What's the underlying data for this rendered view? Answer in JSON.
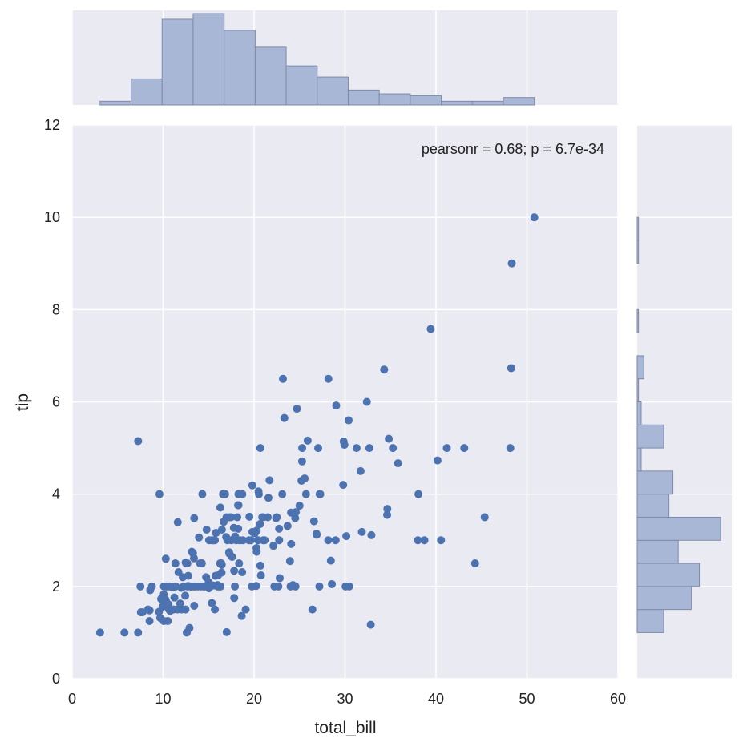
{
  "chart_data": {
    "type": "scatter",
    "variant": "jointplot",
    "xlabel": "total_bill",
    "ylabel": "tip",
    "xlim": [
      0,
      60
    ],
    "ylim": [
      0,
      12
    ],
    "x_ticks": [
      0,
      10,
      20,
      30,
      40,
      50,
      60
    ],
    "y_ticks": [
      0,
      2,
      4,
      6,
      8,
      10,
      12
    ],
    "grid": true,
    "annotation": "pearsonr = 0.68; p = 6.7e-34",
    "colors": {
      "background": "#EAEAF2",
      "grid": "#FFFFFF",
      "points": "#4C72B0",
      "hist_fill": "#A9B7D6",
      "hist_edge": "#7D8AA8"
    },
    "points": [
      [
        3.07,
        1.0
      ],
      [
        5.75,
        1.0
      ],
      [
        7.25,
        1.0
      ],
      [
        7.25,
        5.15
      ],
      [
        7.51,
        2.0
      ],
      [
        7.56,
        1.44
      ],
      [
        7.74,
        1.44
      ],
      [
        8.35,
        1.5
      ],
      [
        8.51,
        1.25
      ],
      [
        8.52,
        1.48
      ],
      [
        8.58,
        1.92
      ],
      [
        8.77,
        2.0
      ],
      [
        9.55,
        1.45
      ],
      [
        9.6,
        4.0
      ],
      [
        9.68,
        1.32
      ],
      [
        9.78,
        1.73
      ],
      [
        9.94,
        1.56
      ],
      [
        10.07,
        1.25
      ],
      [
        10.07,
        1.83
      ],
      [
        10.09,
        2.0
      ],
      [
        10.27,
        1.71
      ],
      [
        10.29,
        2.6
      ],
      [
        10.33,
        1.67
      ],
      [
        10.33,
        2.0
      ],
      [
        10.34,
        1.66
      ],
      [
        10.34,
        2.0
      ],
      [
        10.51,
        1.25
      ],
      [
        10.59,
        1.61
      ],
      [
        10.63,
        2.0
      ],
      [
        10.65,
        1.5
      ],
      [
        10.77,
        1.47
      ],
      [
        11.02,
        1.98
      ],
      [
        11.17,
        1.5
      ],
      [
        11.24,
        1.76
      ],
      [
        11.35,
        2.5
      ],
      [
        11.38,
        2.0
      ],
      [
        11.59,
        1.5
      ],
      [
        11.61,
        3.39
      ],
      [
        11.69,
        2.31
      ],
      [
        11.87,
        1.63
      ],
      [
        12.02,
        1.97
      ],
      [
        12.03,
        1.5
      ],
      [
        12.16,
        2.2
      ],
      [
        12.26,
        2.0
      ],
      [
        12.43,
        1.8
      ],
      [
        12.46,
        1.5
      ],
      [
        12.48,
        2.52
      ],
      [
        12.54,
        2.5
      ],
      [
        12.6,
        1.0
      ],
      [
        12.66,
        2.5
      ],
      [
        12.69,
        2.0
      ],
      [
        12.74,
        2.01
      ],
      [
        12.76,
        2.23
      ],
      [
        12.9,
        1.1
      ],
      [
        13.0,
        2.0
      ],
      [
        13.03,
        2.0
      ],
      [
        13.13,
        2.0
      ],
      [
        13.16,
        2.75
      ],
      [
        13.28,
        2.72
      ],
      [
        13.37,
        2.0
      ],
      [
        13.39,
        2.61
      ],
      [
        13.42,
        3.48
      ],
      [
        13.42,
        1.58
      ],
      [
        13.51,
        2.0
      ],
      [
        13.81,
        2.0
      ],
      [
        13.94,
        3.06
      ],
      [
        14.07,
        2.5
      ],
      [
        14.15,
        2.0
      ],
      [
        14.26,
        2.5
      ],
      [
        14.31,
        4.0
      ],
      [
        14.48,
        2.0
      ],
      [
        14.52,
        2.0
      ],
      [
        14.73,
        2.2
      ],
      [
        14.78,
        3.23
      ],
      [
        15.01,
        2.09
      ],
      [
        15.04,
        1.96
      ],
      [
        15.06,
        3.0
      ],
      [
        15.36,
        1.64
      ],
      [
        15.38,
        3.0
      ],
      [
        15.48,
        2.02
      ],
      [
        15.53,
        3.0
      ],
      [
        15.69,
        1.5
      ],
      [
        15.69,
        3.0
      ],
      [
        15.77,
        2.23
      ],
      [
        15.81,
        3.16
      ],
      [
        15.98,
        2.03
      ],
      [
        16.0,
        2.0
      ],
      [
        16.04,
        2.24
      ],
      [
        16.21,
        2.0
      ],
      [
        16.27,
        2.5
      ],
      [
        16.29,
        3.71
      ],
      [
        16.31,
        2.0
      ],
      [
        16.4,
        2.5
      ],
      [
        16.43,
        2.3
      ],
      [
        16.45,
        2.47
      ],
      [
        16.47,
        3.23
      ],
      [
        16.58,
        4.0
      ],
      [
        16.66,
        3.4
      ],
      [
        16.82,
        4.0
      ],
      [
        16.93,
        3.07
      ],
      [
        16.97,
        3.5
      ],
      [
        16.99,
        1.01
      ],
      [
        17.07,
        3.0
      ],
      [
        17.26,
        2.74
      ],
      [
        17.29,
        2.71
      ],
      [
        17.31,
        3.5
      ],
      [
        17.47,
        3.5
      ],
      [
        17.51,
        3.0
      ],
      [
        17.59,
        2.64
      ],
      [
        17.78,
        3.27
      ],
      [
        17.81,
        2.34
      ],
      [
        17.82,
        1.75
      ],
      [
        17.89,
        2.0
      ],
      [
        17.92,
        3.08
      ],
      [
        18.04,
        3.0
      ],
      [
        18.15,
        3.5
      ],
      [
        18.24,
        3.76
      ],
      [
        18.26,
        3.25
      ],
      [
        18.28,
        4.0
      ],
      [
        18.29,
        3.76
      ],
      [
        18.35,
        2.5
      ],
      [
        18.43,
        3.0
      ],
      [
        18.64,
        1.36
      ],
      [
        18.69,
        2.31
      ],
      [
        18.71,
        4.0
      ],
      [
        18.78,
        3.0
      ],
      [
        19.08,
        1.5
      ],
      [
        19.44,
        3.0
      ],
      [
        19.49,
        3.51
      ],
      [
        19.65,
        3.0
      ],
      [
        19.77,
        2.0
      ],
      [
        19.81,
        4.19
      ],
      [
        19.82,
        3.18
      ],
      [
        20.08,
        3.15
      ],
      [
        20.23,
        2.01
      ],
      [
        20.27,
        2.83
      ],
      [
        20.29,
        3.21
      ],
      [
        20.29,
        2.75
      ],
      [
        20.45,
        3.0
      ],
      [
        20.49,
        4.06
      ],
      [
        20.53,
        4.0
      ],
      [
        20.65,
        3.35
      ],
      [
        20.69,
        2.45
      ],
      [
        20.69,
        5.0
      ],
      [
        20.76,
        2.24
      ],
      [
        20.9,
        3.5
      ],
      [
        21.01,
        3.0
      ],
      [
        21.01,
        3.5
      ],
      [
        21.16,
        3.0
      ],
      [
        21.5,
        3.5
      ],
      [
        21.58,
        3.92
      ],
      [
        21.7,
        4.3
      ],
      [
        22.12,
        2.88
      ],
      [
        22.23,
        2.0
      ],
      [
        22.42,
        3.48
      ],
      [
        22.49,
        3.5
      ],
      [
        22.67,
        2.0
      ],
      [
        22.75,
        3.25
      ],
      [
        22.76,
        3.0
      ],
      [
        22.82,
        2.18
      ],
      [
        23.1,
        4.0
      ],
      [
        23.17,
        6.5
      ],
      [
        23.33,
        5.65
      ],
      [
        23.68,
        3.31
      ],
      [
        23.95,
        2.55
      ],
      [
        24.01,
        2.0
      ],
      [
        24.06,
        3.6
      ],
      [
        24.08,
        2.92
      ],
      [
        24.27,
        2.03
      ],
      [
        24.52,
        3.48
      ],
      [
        24.55,
        2.0
      ],
      [
        24.59,
        3.61
      ],
      [
        24.71,
        5.85
      ],
      [
        25.0,
        3.75
      ],
      [
        25.21,
        4.29
      ],
      [
        25.28,
        4.71
      ],
      [
        25.29,
        5.0
      ],
      [
        25.56,
        4.34
      ],
      [
        25.71,
        4.0
      ],
      [
        25.89,
        5.16
      ],
      [
        26.41,
        1.5
      ],
      [
        26.59,
        3.41
      ],
      [
        26.86,
        3.14
      ],
      [
        26.88,
        3.12
      ],
      [
        27.05,
        5.0
      ],
      [
        27.18,
        2.0
      ],
      [
        27.2,
        4.0
      ],
      [
        27.28,
        4.0
      ],
      [
        28.15,
        3.0
      ],
      [
        28.17,
        6.5
      ],
      [
        28.44,
        2.56
      ],
      [
        28.55,
        2.05
      ],
      [
        28.97,
        3.0
      ],
      [
        29.03,
        5.92
      ],
      [
        29.8,
        4.2
      ],
      [
        29.85,
        5.14
      ],
      [
        29.93,
        5.07
      ],
      [
        30.06,
        2.0
      ],
      [
        30.14,
        3.09
      ],
      [
        30.4,
        5.6
      ],
      [
        30.46,
        2.0
      ],
      [
        31.27,
        5.0
      ],
      [
        31.71,
        4.5
      ],
      [
        31.85,
        3.18
      ],
      [
        32.4,
        6.0
      ],
      [
        32.68,
        5.0
      ],
      [
        32.83,
        1.17
      ],
      [
        32.9,
        3.11
      ],
      [
        34.3,
        6.7
      ],
      [
        34.63,
        3.55
      ],
      [
        34.65,
        3.68
      ],
      [
        34.81,
        5.2
      ],
      [
        35.26,
        5.0
      ],
      [
        35.83,
        4.67
      ],
      [
        38.01,
        3.0
      ],
      [
        38.07,
        4.0
      ],
      [
        38.73,
        3.0
      ],
      [
        39.42,
        7.58
      ],
      [
        40.17,
        4.73
      ],
      [
        40.55,
        3.0
      ],
      [
        41.19,
        5.0
      ],
      [
        43.11,
        5.0
      ],
      [
        44.3,
        2.5
      ],
      [
        45.35,
        3.5
      ],
      [
        48.17,
        5.0
      ],
      [
        48.27,
        6.73
      ],
      [
        48.33,
        9.0
      ],
      [
        50.81,
        10.0
      ]
    ],
    "x_histogram": {
      "bin_edges": [
        3.07,
        6.48,
        9.89,
        13.3,
        16.71,
        20.12,
        23.53,
        26.94,
        30.35,
        33.76,
        37.17,
        40.58,
        43.99,
        47.4,
        50.81
      ],
      "counts": [
        2,
        14,
        46,
        49,
        40,
        31,
        21,
        15,
        8,
        6,
        5,
        2,
        2,
        4
      ]
    },
    "y_histogram": {
      "bin_edges": [
        1.0,
        1.5,
        2.0,
        2.5,
        3.0,
        3.5,
        4.0,
        4.5,
        5.0,
        5.5,
        6.0,
        6.5,
        7.0,
        7.5,
        8.0,
        8.5,
        9.0,
        9.5,
        10.0
      ],
      "counts": [
        20,
        41,
        47,
        31,
        63,
        24,
        27,
        3,
        20,
        3,
        1,
        5,
        0,
        1,
        0,
        0,
        1,
        1
      ]
    }
  }
}
